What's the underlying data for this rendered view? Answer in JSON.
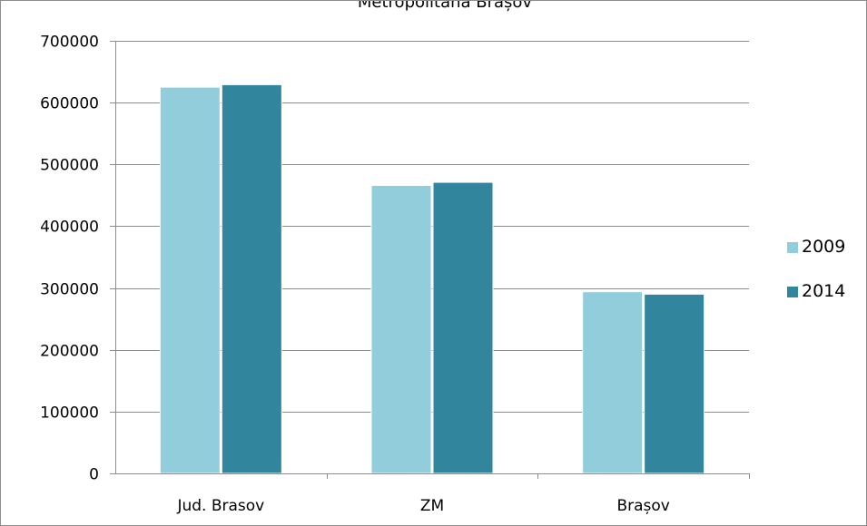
{
  "chart_data": {
    "type": "bar",
    "title": "Metropolitana Brașov",
    "categories": [
      "Jud. Brasov",
      "ZM",
      "Brașov"
    ],
    "series": [
      {
        "name": "2009",
        "color": "#92CDDC",
        "values": [
          625000,
          466000,
          294000
        ]
      },
      {
        "name": "2014",
        "color": "#31859C",
        "values": [
          629000,
          471000,
          290000
        ]
      }
    ],
    "yticks": [
      0,
      100000,
      200000,
      300000,
      400000,
      500000,
      600000,
      700000
    ],
    "ylim": [
      0,
      700000
    ],
    "xlabel": "",
    "ylabel": "",
    "grid": true,
    "legend_position": "right"
  }
}
